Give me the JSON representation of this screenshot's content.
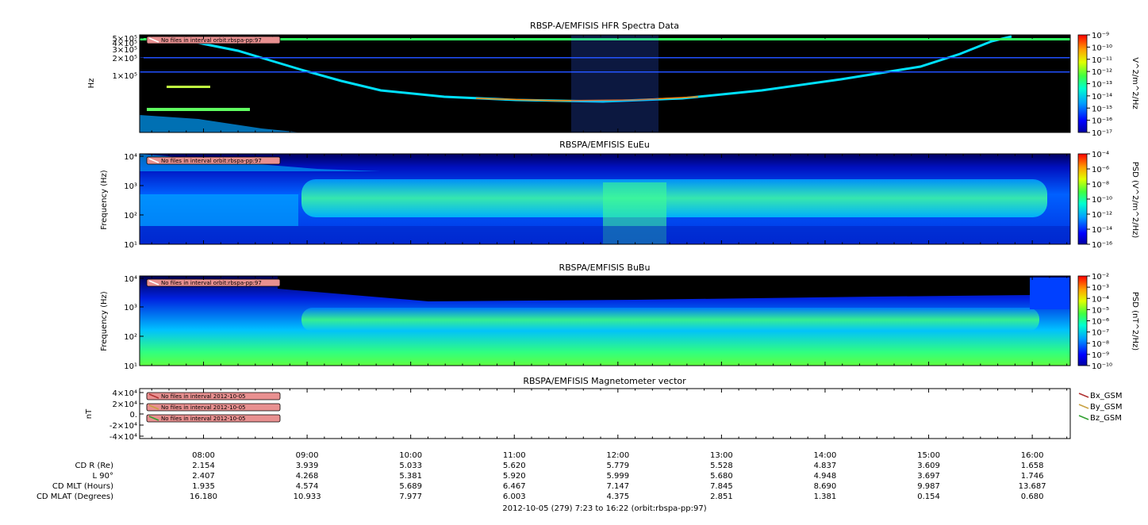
{
  "chart_data": [
    {
      "type": "heatmap",
      "title": "RBSP-A/EMFISIS  HFR Spectra Data",
      "ylabel": "Hz",
      "yscale": "log",
      "yticks": [
        "5×10⁵",
        "4×10⁵",
        "3×10⁵",
        "2×10⁵",
        "1×10⁵"
      ],
      "colorbar": {
        "label": "V^2/m^2/Hz",
        "scale": "log",
        "ticks": [
          "10⁻⁹",
          "10⁻¹⁰",
          "10⁻¹¹",
          "10⁻¹²",
          "10⁻¹³",
          "10⁻¹⁴",
          "10⁻¹⁵",
          "10⁻¹⁶",
          "10⁻¹⁷"
        ]
      },
      "annotation": "No files in interval orbit:rbspa-pp:97"
    },
    {
      "type": "heatmap",
      "title": "RBSPA/EMFISIS  EuEu",
      "ylabel": "Frequency (Hz)",
      "yscale": "log",
      "ylim": [
        1,
        10000
      ],
      "yticks": [
        "10⁴",
        "10³",
        "10²",
        "10¹"
      ],
      "colorbar": {
        "label": "PSD (V^2/m^2/Hz)",
        "scale": "log",
        "ticks": [
          "10⁻⁴",
          "10⁻⁶",
          "10⁻⁸",
          "10⁻¹⁰",
          "10⁻¹²",
          "10⁻¹⁴",
          "10⁻¹⁶"
        ]
      },
      "annotation": "No files in interval orbit:rbspa-pp:97"
    },
    {
      "type": "heatmap",
      "title": "RBSPA/EMFISIS  BuBu",
      "ylabel": "Frequency (Hz)",
      "yscale": "log",
      "ylim": [
        10,
        10000
      ],
      "yticks": [
        "10⁴",
        "10³",
        "10²",
        "10¹"
      ],
      "colorbar": {
        "label": "PSD (nT^2/Hz)",
        "scale": "log",
        "ticks": [
          "10⁻²",
          "10⁻³",
          "10⁻⁴",
          "10⁻⁵",
          "10⁻⁶",
          "10⁻⁷",
          "10⁻⁸",
          "10⁻⁹",
          "10⁻¹⁰"
        ]
      },
      "annotation": "No files in interval orbit:rbspa-pp:97"
    },
    {
      "type": "line",
      "title": "RBSPA/EMFISIS  Magnetometer vector",
      "ylabel": "nT",
      "ylim": [
        -40000,
        40000
      ],
      "yticks": [
        "4×10⁴",
        "2×10⁴",
        "0.",
        "-2×10⁴",
        "-4×10⁴"
      ],
      "series": [
        {
          "name": "Bx_GSM",
          "color": "#b03030",
          "annotation": "No files in interval 2012-10-05",
          "values": []
        },
        {
          "name": "By_GSM",
          "color": "#c8a040",
          "annotation": "No files in interval 2012-10-05",
          "values": []
        },
        {
          "name": "Bz_GSM",
          "color": "#30a030",
          "annotation": "No files in interval 2012-10-05",
          "values": []
        }
      ]
    }
  ],
  "time_axis": {
    "start": "07:23",
    "end": "16:22",
    "tick_labels": [
      "08:00",
      "09:00",
      "10:00",
      "11:00",
      "12:00",
      "13:00",
      "14:00",
      "15:00",
      "16:00"
    ],
    "tick_hours": [
      8,
      9,
      10,
      11,
      12,
      13,
      14,
      15,
      16
    ]
  },
  "ephemeris": {
    "rows": [
      {
        "label": "CD R (Re)",
        "values": [
          "2.154",
          "3.939",
          "5.033",
          "5.620",
          "5.779",
          "5.528",
          "4.837",
          "3.609",
          "1.658"
        ]
      },
      {
        "label": "L 90°",
        "values": [
          "2.407",
          "4.268",
          "5.381",
          "5.920",
          "5.999",
          "5.680",
          "4.948",
          "3.697",
          "1.746"
        ]
      },
      {
        "label": "CD MLT (Hours)",
        "values": [
          "1.935",
          "4.574",
          "5.689",
          "6.467",
          "7.147",
          "7.845",
          "8.690",
          "9.987",
          "13.687"
        ]
      },
      {
        "label": "CD MLAT (Degrees)",
        "values": [
          "16.180",
          "10.933",
          "7.977",
          "6.003",
          "4.375",
          "2.851",
          "1.381",
          "0.154",
          "0.680"
        ]
      }
    ]
  },
  "footer": "2012-10-05 (279) 7:23 to 16:22 (orbit:rbspa-pp:97)"
}
